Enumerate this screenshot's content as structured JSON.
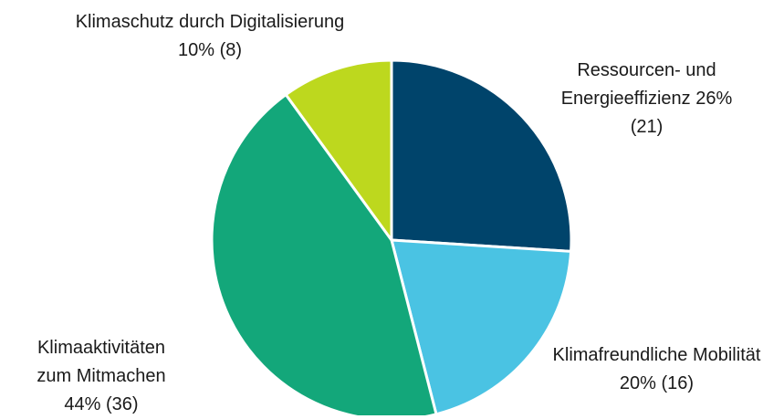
{
  "chart_data": {
    "type": "pie",
    "categories": [
      "Ressourcen- und Energieeffizienz",
      "Klimafreundliche Mobilität",
      "Klimaaktivitäten zum Mitmachen",
      "Klimaschutz durch Digitalisierung"
    ],
    "values": [
      26,
      20,
      44,
      10
    ],
    "value_labels": [
      "26%",
      "20%",
      "44%",
      "10%"
    ],
    "counts": [
      21,
      16,
      36,
      8
    ],
    "count_labels": [
      "(21)",
      "(16)",
      "(36)",
      "(8)"
    ],
    "colors": [
      "#00446b",
      "#4ac3e3",
      "#13a77a",
      "#bdd81e"
    ]
  }
}
